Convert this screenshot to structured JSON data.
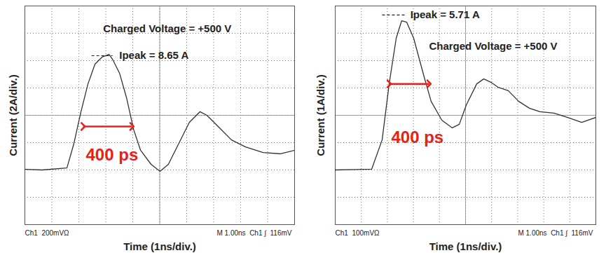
{
  "chart_data": [
    {
      "type": "line",
      "x_label": "Time (1ns/div.)",
      "y_label": "Current (2A/div.)",
      "xlim": [
        0,
        10
      ],
      "xticks": [
        0,
        1,
        2,
        3,
        4,
        5,
        6,
        7,
        8,
        9,
        10
      ],
      "ylim": [
        -4,
        12
      ],
      "yticks": [
        -4,
        -2,
        0,
        2,
        4,
        6,
        8,
        10,
        12
      ],
      "grid": true,
      "tick_labels": false,
      "color": "#333333",
      "x": [
        0,
        0.65,
        1.56,
        1.82,
        2.08,
        2.34,
        2.6,
        2.86,
        3.12,
        3.25,
        3.51,
        3.77,
        4.03,
        4.29,
        4.68,
        5.01,
        5.32,
        5.71,
        6.1,
        6.49,
        6.75,
        7.14,
        7.66,
        8.18,
        8.83,
        9.48,
        10
      ],
      "values": [
        0.05,
        0,
        0.15,
        1.95,
        4.26,
        6.3,
        7.74,
        8.26,
        8.46,
        8.1,
        7.08,
        5.28,
        2.97,
        1.44,
        0.41,
        -0.1,
        0.41,
        1.95,
        3.49,
        4.26,
        4.0,
        3.23,
        2.2,
        1.69,
        1.28,
        1.18,
        1.44
      ],
      "annotations": [
        {
          "text": "Charged Voltage = +500 V",
          "x": 2.9,
          "y": 10.3
        },
        {
          "text": "Ipeak = 8.65 A",
          "x": 3.5,
          "y": 8.36
        },
        {
          "text": "400 ps",
          "x": 2.26,
          "y": 1.08,
          "color": "#e8201a"
        }
      ],
      "reference_lines": [
        {
          "x1": 2.47,
          "x2": 3.25,
          "y": 8.36,
          "line_style": "dashed"
        }
      ],
      "arrows": [
        {
          "x1": 2.16,
          "x2": 3.97,
          "y": 3.18,
          "color": "#e8201a"
        }
      ],
      "footer_left": "Ch1  200mVΩ",
      "footer_right": "M 1.00ns  Ch1 ∫  116mV"
    },
    {
      "type": "line",
      "x_label": "Time (1ns/div.)",
      "y_label": "Current (1A/div.)",
      "xlim": [
        0,
        10
      ],
      "xticks": [
        0,
        1,
        2,
        3,
        4,
        5,
        6,
        7,
        8,
        9,
        10
      ],
      "ylim": [
        -2,
        6
      ],
      "yticks": [
        -2,
        -1,
        0,
        1,
        2,
        3,
        4,
        5,
        6
      ],
      "grid": true,
      "tick_labels": false,
      "color": "#333333",
      "x": [
        0,
        1.4,
        1.8,
        2.07,
        2.34,
        2.55,
        2.74,
        3.01,
        3.41,
        3.68,
        4.09,
        4.49,
        4.76,
        5.03,
        5.43,
        5.7,
        5.97,
        6.24,
        6.64,
        7.04,
        7.45,
        7.85,
        8.39,
        8.92,
        9.46,
        10
      ],
      "values": [
        0,
        0.03,
        1.1,
        3.15,
        4.82,
        5.46,
        5.41,
        4.82,
        3.41,
        2.51,
        1.82,
        1.54,
        1.67,
        2.38,
        3.15,
        3.33,
        3.21,
        3.03,
        2.9,
        2.51,
        2.26,
        2.13,
        2.08,
        1.92,
        1.74,
        1.92
      ],
      "annotations": [
        {
          "text": "Charged Voltage = +500 V",
          "x": 3.6,
          "y": 4.51
        },
        {
          "text": "Ipeak = 5.71 A",
          "x": 2.88,
          "y": 5.67
        },
        {
          "text": "400 ps",
          "x": 2.15,
          "y": 1.18,
          "color": "#e8201a"
        }
      ],
      "reference_lines": [
        {
          "x1": 1.8,
          "x2": 2.74,
          "y": 5.67,
          "line_style": "dashed"
        }
      ],
      "arrows": [
        {
          "x1": 2.07,
          "x2": 3.6,
          "y": 3.15,
          "color": "#e8201a"
        }
      ],
      "footer_left": "Ch1  100mVΩ",
      "footer_right": "M 1.00ns  Ch1 ∫  116mV"
    }
  ]
}
